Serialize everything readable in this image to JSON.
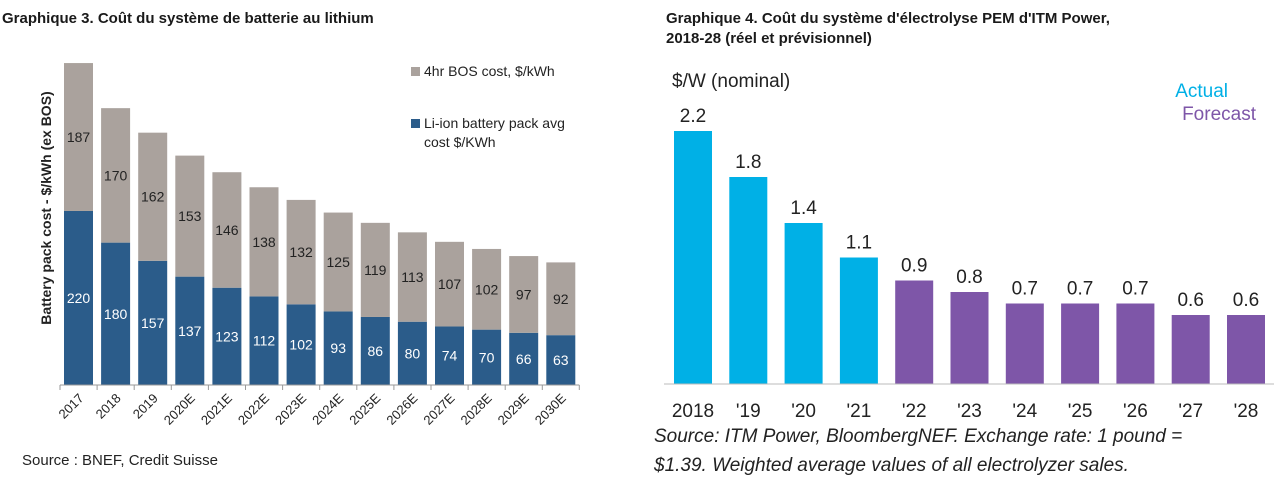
{
  "left": {
    "title": "Graphique 3. Coût du système de batterie au lithium",
    "source": "Source : BNEF, Credit Suisse"
  },
  "right": {
    "title_line1": "Graphique 4. Coût du système d'électrolyse PEM d'ITM Power,",
    "title_line2": "2018-28 (réel et prévisionnel)",
    "source_line1": "Source: ITM Power, BloombergNEF. Exchange rate: 1 pound =",
    "source_line2": "$1.39. Weighted average values of all electrolyzer sales."
  },
  "chart_data": [
    {
      "type": "bar",
      "stacked": true,
      "ylabel": "Battery pack cost - $/kWh (ex BOS)",
      "categories": [
        "2017",
        "2018",
        "2019",
        "2020E",
        "2021E",
        "2022E",
        "2023E",
        "2024E",
        "2025E",
        "2026E",
        "2027E",
        "2028E",
        "2029E",
        "2030E"
      ],
      "series": [
        {
          "name": "Li-ion battery pack avg cost $/KWh",
          "color": "#2b5c8a",
          "values": [
            220,
            180,
            157,
            137,
            123,
            112,
            102,
            93,
            86,
            80,
            74,
            70,
            66,
            63
          ]
        },
        {
          "name": "4hr BOS cost, $/kWh",
          "color": "#aaa29d",
          "values": [
            187,
            170,
            162,
            153,
            146,
            138,
            132,
            125,
            119,
            113,
            107,
            102,
            97,
            92
          ]
        }
      ],
      "legend": "top-right"
    },
    {
      "type": "bar",
      "unit_label": "$/W (nominal)",
      "categories": [
        "2018",
        "'19",
        "'20",
        "'21",
        "'22",
        "'23",
        "'24",
        "'25",
        "'26",
        "'27",
        "'28"
      ],
      "values": [
        2.2,
        1.8,
        1.4,
        1.1,
        0.9,
        0.8,
        0.7,
        0.7,
        0.7,
        0.6,
        0.6
      ],
      "value_labels": [
        "2.2",
        "1.8",
        "1.4",
        "1.1",
        "0.9",
        "0.8",
        "0.7",
        "0.7",
        "0.7",
        "0.6",
        "0.6"
      ],
      "status": [
        "Actual",
        "Actual",
        "Actual",
        "Actual",
        "Forecast",
        "Forecast",
        "Forecast",
        "Forecast",
        "Forecast",
        "Forecast",
        "Forecast"
      ],
      "legend": [
        {
          "name": "Actual",
          "color": "#00b0e6"
        },
        {
          "name": "Forecast",
          "color": "#7e56a8"
        }
      ]
    }
  ]
}
